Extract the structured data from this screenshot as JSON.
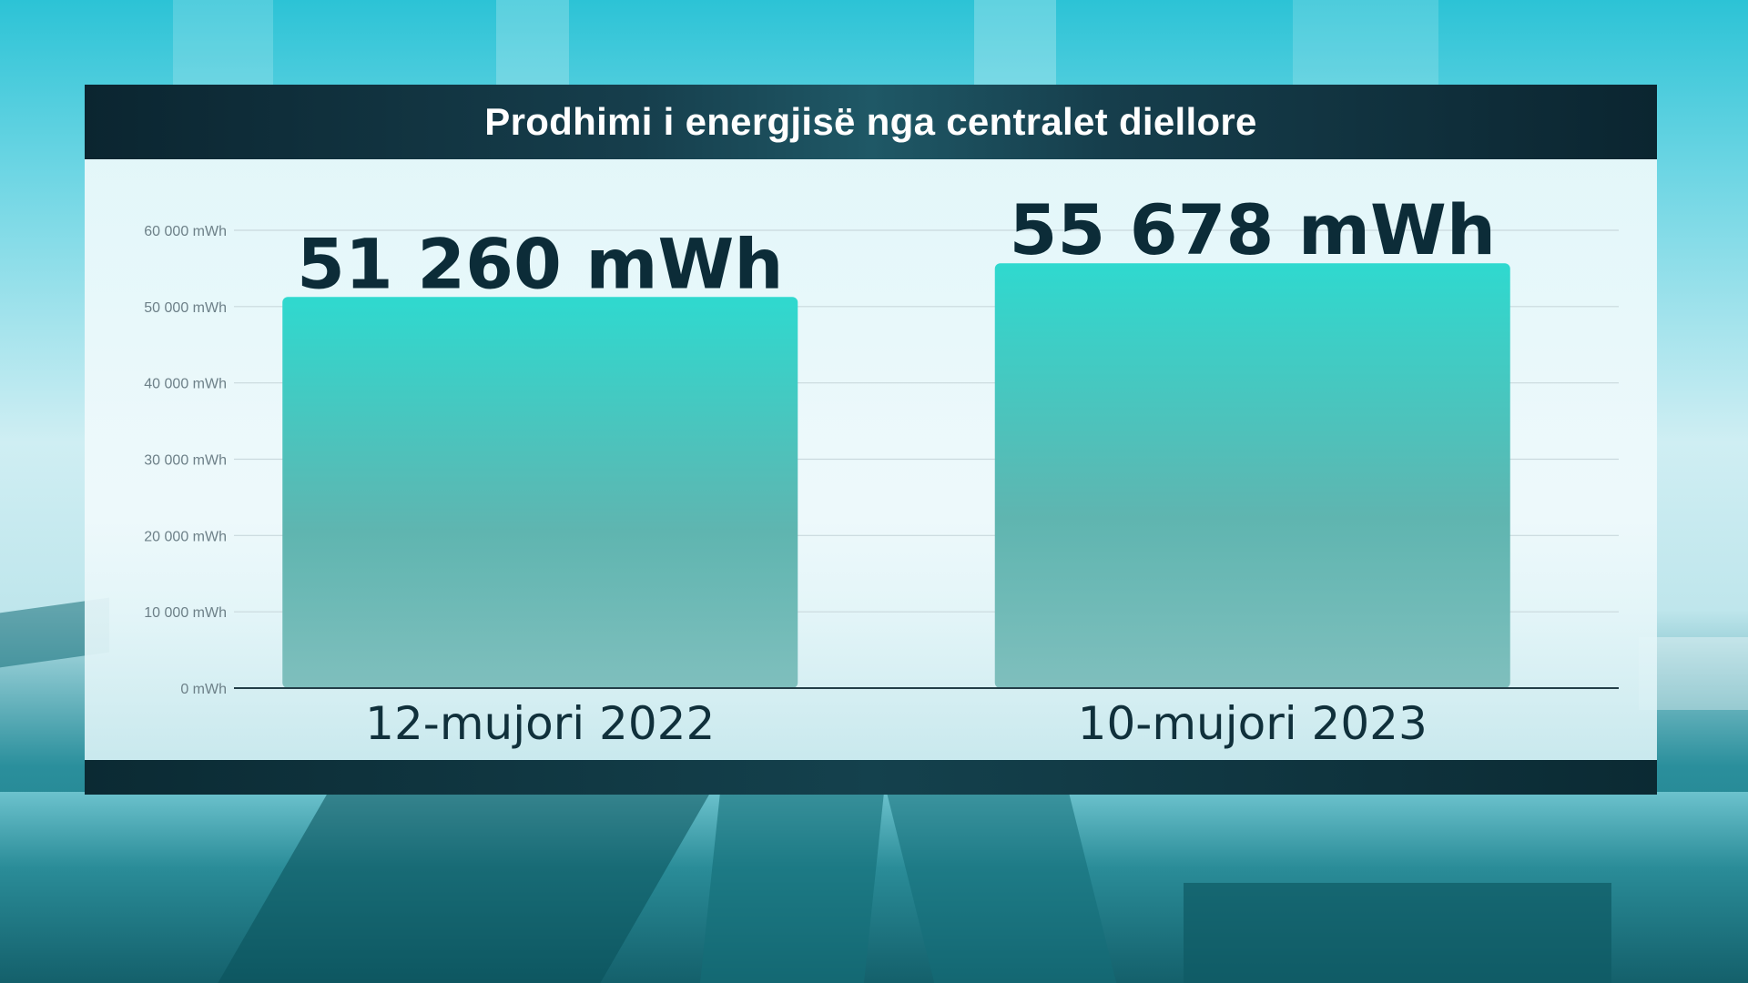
{
  "title": "Prodhimi i energjisë nga centralet diellore",
  "colors": {
    "title_bar": "#0b2530",
    "bar_top": "#2fd9cf",
    "bar_bottom": "#7fbfbd",
    "value_text": "#0c2c38",
    "tick_text": "#6d8088"
  },
  "chart_data": {
    "type": "bar",
    "title": "Prodhimi i energjisë nga centralet diellore",
    "categories": [
      "12-mujori 2022",
      "10-mujori 2023"
    ],
    "values": [
      51260,
      55678
    ],
    "value_labels": [
      "51 260 mWh",
      "55 678 mWh"
    ],
    "ylim": [
      0,
      60000
    ],
    "yticks": [
      0,
      10000,
      20000,
      30000,
      40000,
      50000,
      60000
    ],
    "ytick_labels": [
      "0 mWh",
      "10 000 mWh",
      "20 000 mWh",
      "30 000 mWh",
      "40 000 mWh",
      "50 000 mWh",
      "60 000 mWh"
    ],
    "xlabel": "",
    "ylabel": "",
    "grid": true,
    "legend": "none"
  }
}
